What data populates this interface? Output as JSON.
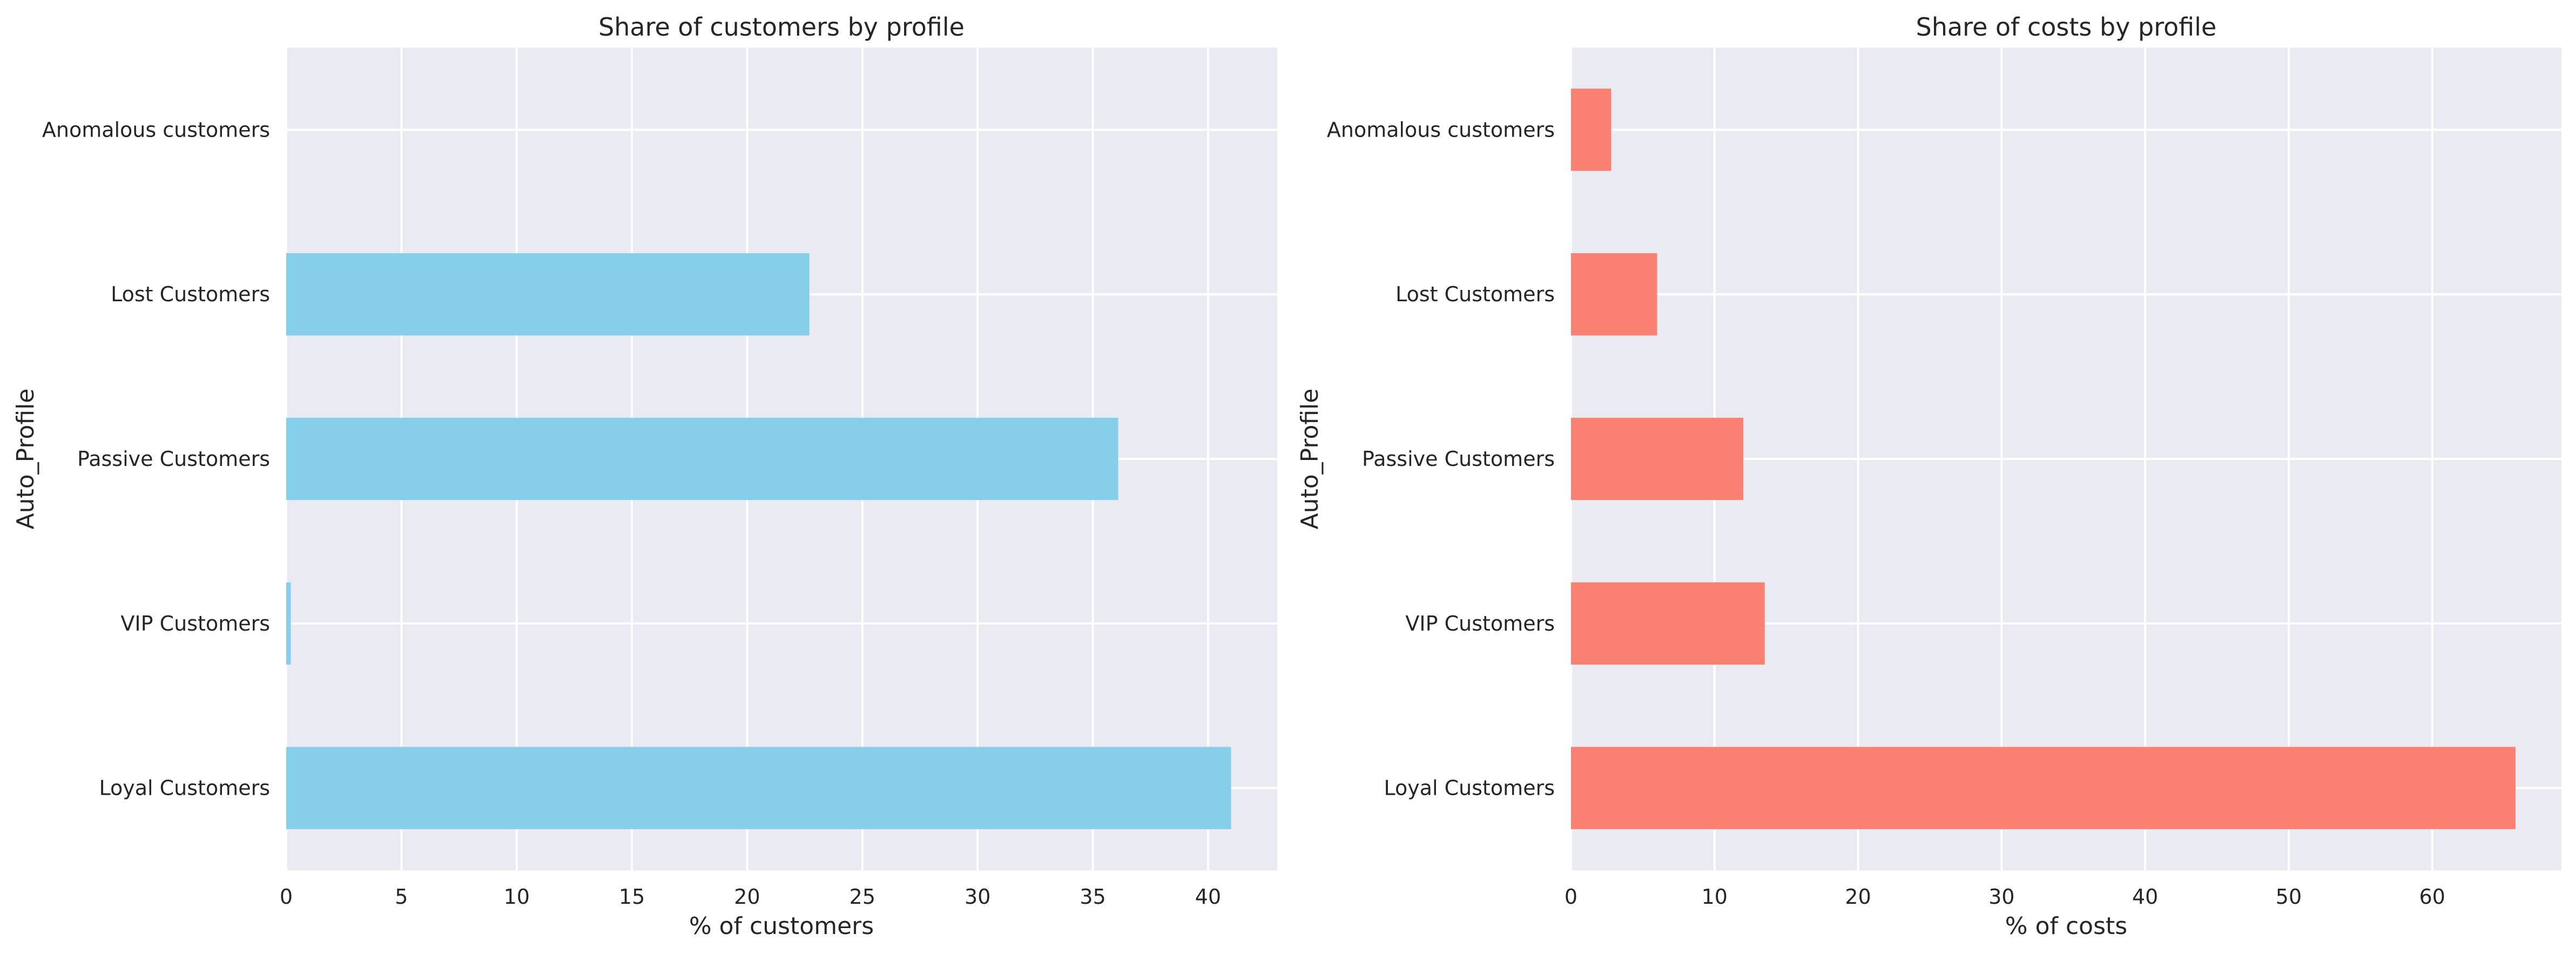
{
  "chart_data": [
    {
      "type": "bar",
      "orientation": "horizontal",
      "title": "Share of customers by profile",
      "xlabel": "% of customers",
      "ylabel": "Auto_Profile",
      "categories": [
        "Loyal Customers",
        "VIP Customers",
        "Passive Customers",
        "Lost Customers",
        "Anomalous customers"
      ],
      "values": [
        41.0,
        0.2,
        36.1,
        22.7,
        0.0
      ],
      "color": "#87ceeb",
      "xlim": [
        0,
        43
      ],
      "xticks": [
        0,
        5,
        10,
        15,
        20,
        25,
        30,
        35,
        40
      ],
      "grid": true,
      "legend": "none"
    },
    {
      "type": "bar",
      "orientation": "horizontal",
      "title": "Share of costs by profile",
      "xlabel": "% of costs",
      "ylabel": "Auto_Profile",
      "categories": [
        "Loyal Customers",
        "VIP Customers",
        "Passive Customers",
        "Lost Customers",
        "Anomalous customers"
      ],
      "values": [
        65.8,
        13.5,
        12.0,
        6.0,
        2.8
      ],
      "color": "#fa8072",
      "xlim": [
        0,
        69
      ],
      "xticks": [
        0,
        10,
        20,
        30,
        40,
        50,
        60
      ],
      "grid": true,
      "legend": "none"
    }
  ]
}
